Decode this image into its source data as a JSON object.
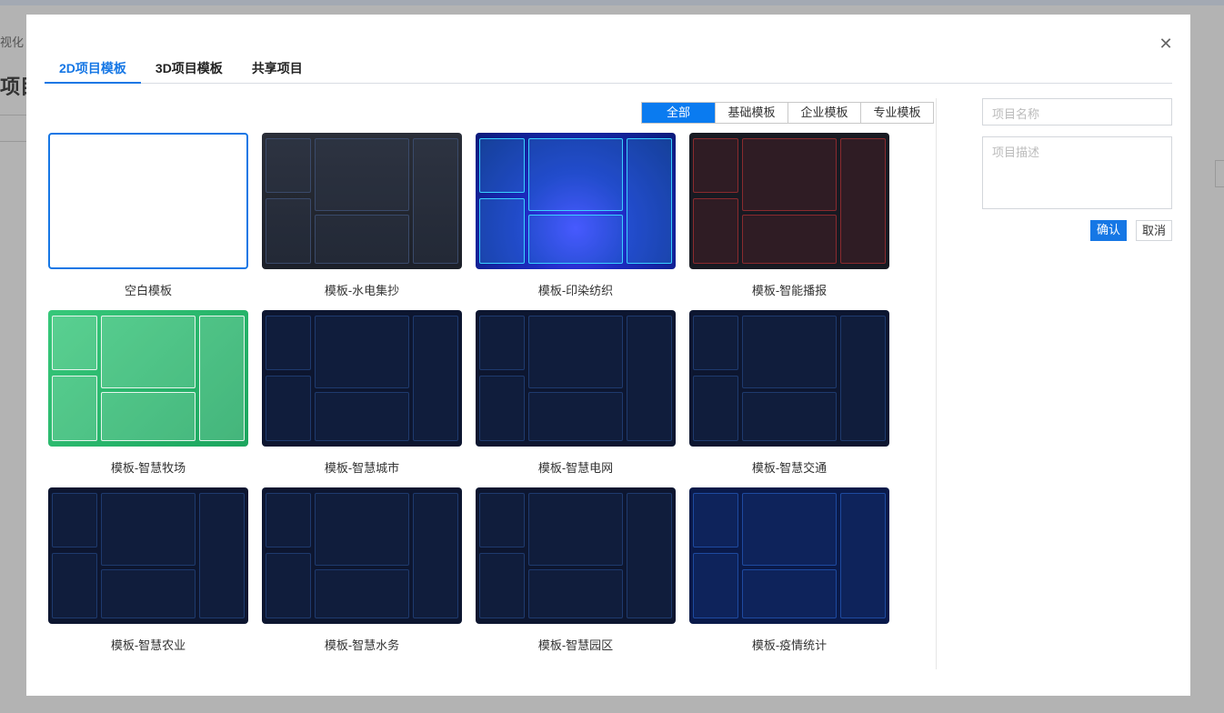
{
  "background": {
    "breadcrumb_fragment": "视化",
    "title_fragment": "项目"
  },
  "tabs": [
    {
      "label": "2D项目模板",
      "active": true
    },
    {
      "label": "3D项目模板"
    },
    {
      "label": "共享项目"
    }
  ],
  "filters": [
    {
      "label": "全部",
      "active": true
    },
    {
      "label": "基础模板"
    },
    {
      "label": "企业模板"
    },
    {
      "label": "专业模板"
    }
  ],
  "form": {
    "name_placeholder": "项目名称",
    "desc_placeholder": "项目描述",
    "confirm": "确认",
    "cancel": "取消"
  },
  "colors": {
    "accent": "#1677e5"
  },
  "templates": [
    {
      "label": "空白模板",
      "style": "blank"
    },
    {
      "label": "模板-水电集抄",
      "style": "dark"
    },
    {
      "label": "模板-印染纺织",
      "style": "blue"
    },
    {
      "label": "模板-智能播报",
      "style": "red"
    },
    {
      "label": "模板-智慧牧场",
      "style": "green"
    },
    {
      "label": "模板-智慧城市",
      "style": "navy"
    },
    {
      "label": "模板-智慧电网",
      "style": "navy"
    },
    {
      "label": "模板-智慧交通",
      "style": "navy"
    },
    {
      "label": "模板-智慧农业",
      "style": "navy"
    },
    {
      "label": "模板-智慧水务",
      "style": "navy"
    },
    {
      "label": "模板-智慧园区",
      "style": "navy"
    },
    {
      "label": "模板-疫情统计",
      "style": "covid"
    }
  ]
}
